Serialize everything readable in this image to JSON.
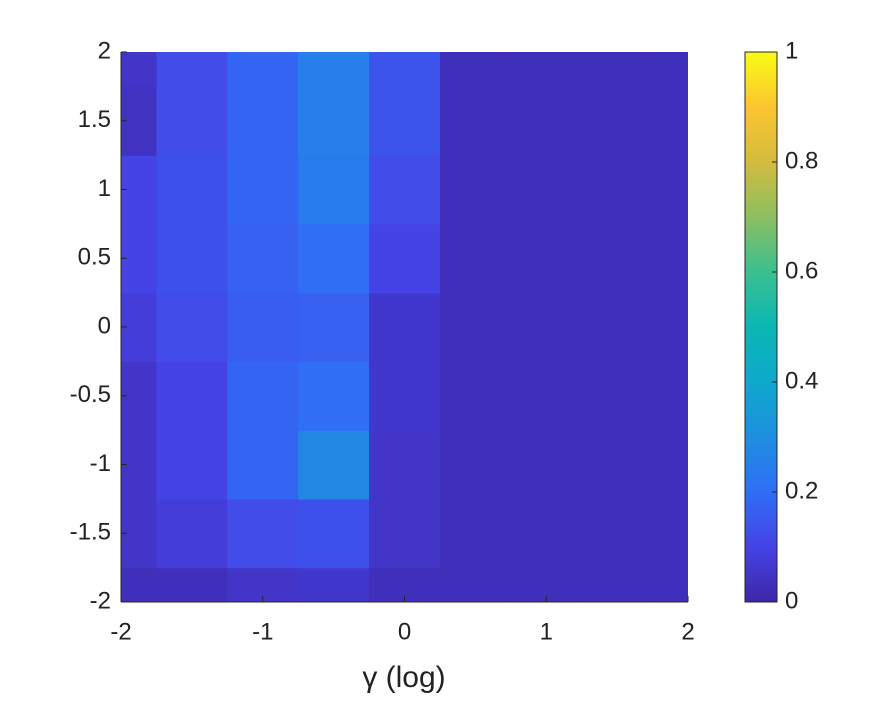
{
  "chart_data": {
    "type": "heatmap",
    "x_label": "γ (log)",
    "x": [
      -2,
      -1.5,
      -1,
      -0.5,
      0,
      0.5,
      1,
      1.5,
      2
    ],
    "y": [
      -2,
      -1.5,
      -1,
      -0.5,
      0,
      0.5,
      1,
      1.5,
      2
    ],
    "z": [
      [
        0.03,
        0.03,
        0.05,
        0.06,
        0.03,
        0.03,
        0.03,
        0.03,
        0.03
      ],
      [
        0.05,
        0.08,
        0.12,
        0.13,
        0.05,
        0.03,
        0.03,
        0.03,
        0.03
      ],
      [
        0.05,
        0.1,
        0.18,
        0.28,
        0.05,
        0.03,
        0.03,
        0.03,
        0.03
      ],
      [
        0.05,
        0.1,
        0.18,
        0.2,
        0.06,
        0.03,
        0.03,
        0.03,
        0.03
      ],
      [
        0.08,
        0.12,
        0.16,
        0.17,
        0.06,
        0.03,
        0.03,
        0.03,
        0.03
      ],
      [
        0.1,
        0.13,
        0.17,
        0.2,
        0.1,
        0.03,
        0.03,
        0.03,
        0.03
      ],
      [
        0.1,
        0.13,
        0.18,
        0.24,
        0.12,
        0.03,
        0.03,
        0.03,
        0.03
      ],
      [
        0.04,
        0.12,
        0.18,
        0.25,
        0.14,
        0.03,
        0.03,
        0.03,
        0.03
      ],
      [
        0.05,
        0.12,
        0.18,
        0.25,
        0.14,
        0.03,
        0.03,
        0.03,
        0.03
      ]
    ],
    "xlim": [
      -2,
      2
    ],
    "xticks": [
      -2,
      -1,
      0,
      1,
      2
    ],
    "ylim": [
      -2,
      2
    ],
    "yticks": [
      -2,
      -1.5,
      -1,
      -0.5,
      0,
      0.5,
      1,
      1.5,
      2
    ],
    "clim": [
      0,
      1
    ],
    "cticks": [
      0,
      0.2,
      0.4,
      0.6,
      0.8,
      1
    ],
    "colormap": [
      "#3e26a8",
      "#4543e6",
      "#2f6ef5",
      "#1e8fe0",
      "#0fa8cd",
      "#0bb7b4",
      "#3bbf8f",
      "#8bbf61",
      "#d4bb3e",
      "#fcc52f",
      "#f9fb15"
    ]
  }
}
